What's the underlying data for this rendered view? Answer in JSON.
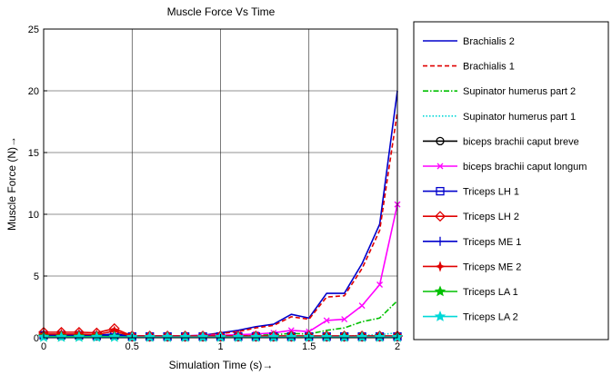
{
  "chart_data": {
    "type": "line",
    "title": "Muscle Force Vs Time",
    "xlabel": "Simulation Time (s)→",
    "ylabel": "Muscle Force (N)→",
    "xlim": [
      0,
      2
    ],
    "ylim": [
      0,
      25
    ],
    "xticks": [
      0,
      0.5,
      1,
      1.5,
      2
    ],
    "yticks": [
      0,
      5,
      10,
      15,
      20,
      25
    ],
    "xtick_labels": [
      "0",
      "0.5",
      "1",
      "1.5",
      "2"
    ],
    "ytick_labels": [
      "0",
      "5",
      "10",
      "15",
      "20",
      "25"
    ],
    "grid": true,
    "legend_position": "outside-right",
    "x": [
      0,
      0.1,
      0.2,
      0.3,
      0.4,
      0.5,
      0.6,
      0.7,
      0.8,
      0.9,
      1.0,
      1.1,
      1.2,
      1.3,
      1.4,
      1.5,
      1.6,
      1.7,
      1.8,
      1.9,
      2.0
    ],
    "series": [
      {
        "name": "Brachialis 2",
        "color": "#0000cc",
        "dash": "solid",
        "marker": "none",
        "values": [
          0.1,
          0.1,
          0.1,
          0.1,
          0.1,
          0.1,
          0.1,
          0.1,
          0.15,
          0.2,
          0.4,
          0.6,
          0.9,
          1.1,
          1.9,
          1.6,
          3.6,
          3.6,
          6.0,
          9.2,
          20.0
        ]
      },
      {
        "name": "Brachialis 1",
        "color": "#e00000",
        "dash": "dashed",
        "marker": "none",
        "values": [
          0.1,
          0.1,
          0.1,
          0.1,
          0.1,
          0.1,
          0.1,
          0.1,
          0.12,
          0.18,
          0.35,
          0.5,
          0.8,
          1.0,
          1.7,
          1.5,
          3.3,
          3.4,
          5.6,
          8.7,
          18.3
        ]
      },
      {
        "name": "Supinator humerus part 2",
        "color": "#00c000",
        "dash": "dashdot",
        "marker": "none",
        "values": [
          0.05,
          0.05,
          0.05,
          0.05,
          0.05,
          0.05,
          0.05,
          0.05,
          0.05,
          0.05,
          0.1,
          0.15,
          0.2,
          0.25,
          0.35,
          0.3,
          0.6,
          0.8,
          1.3,
          1.6,
          3.0
        ]
      },
      {
        "name": "Supinator humerus part 1",
        "color": "#00d8d8",
        "dash": "dotted",
        "marker": "none",
        "values": [
          0.02,
          0.02,
          0.02,
          0.02,
          0.02,
          0.02,
          0.02,
          0.02,
          0.02,
          0.02,
          0.03,
          0.04,
          0.05,
          0.06,
          0.08,
          0.07,
          0.1,
          0.12,
          0.2,
          0.25,
          0.4
        ]
      },
      {
        "name": "biceps brachii caput breve",
        "color": "#000000",
        "dash": "solid",
        "marker": "circle",
        "values": [
          0.2,
          0.15,
          0.15,
          0.1,
          0.35,
          0.05,
          0.05,
          0.05,
          0.05,
          0.05,
          0.05,
          0.05,
          0.05,
          0.05,
          0.05,
          0.05,
          0.05,
          0.05,
          0.05,
          0.05,
          0.05
        ]
      },
      {
        "name": "biceps brachii caput longum",
        "color": "#ff00ff",
        "dash": "solid",
        "marker": "x",
        "values": [
          0.15,
          0.15,
          0.15,
          0.15,
          0.15,
          0.15,
          0.15,
          0.15,
          0.15,
          0.2,
          0.2,
          0.25,
          0.3,
          0.4,
          0.6,
          0.5,
          1.4,
          1.5,
          2.6,
          4.3,
          10.8
        ]
      },
      {
        "name": "Triceps LH 1",
        "color": "#0000cc",
        "dash": "solid",
        "marker": "square",
        "values": [
          0.2,
          0.2,
          0.2,
          0.15,
          0.2,
          0.1,
          0.1,
          0.1,
          0.1,
          0.1,
          0.1,
          0.1,
          0.1,
          0.1,
          0.1,
          0.1,
          0.1,
          0.1,
          0.1,
          0.1,
          0.1
        ]
      },
      {
        "name": "Triceps LH 2",
        "color": "#e00000",
        "dash": "solid",
        "marker": "diamond",
        "values": [
          0.45,
          0.45,
          0.45,
          0.4,
          0.75,
          0.15,
          0.15,
          0.15,
          0.15,
          0.15,
          0.15,
          0.15,
          0.15,
          0.15,
          0.15,
          0.15,
          0.15,
          0.15,
          0.15,
          0.15,
          0.15
        ]
      },
      {
        "name": "Triceps ME 1",
        "color": "#0000cc",
        "dash": "solid",
        "marker": "plus",
        "values": [
          0.25,
          0.25,
          0.25,
          0.2,
          0.3,
          0.1,
          0.1,
          0.1,
          0.1,
          0.1,
          0.1,
          0.1,
          0.1,
          0.1,
          0.1,
          0.1,
          0.1,
          0.1,
          0.1,
          0.1,
          0.1
        ]
      },
      {
        "name": "Triceps ME 2",
        "color": "#e00000",
        "dash": "solid",
        "marker": "star4",
        "values": [
          0.3,
          0.3,
          0.3,
          0.25,
          0.55,
          0.1,
          0.1,
          0.1,
          0.1,
          0.1,
          0.1,
          0.1,
          0.1,
          0.1,
          0.1,
          0.1,
          0.1,
          0.1,
          0.1,
          0.1,
          0.1
        ]
      },
      {
        "name": "Triceps LA 1",
        "color": "#00c000",
        "dash": "solid",
        "marker": "star",
        "values": [
          0.1,
          0.1,
          0.1,
          0.1,
          0.1,
          0.05,
          0.05,
          0.05,
          0.05,
          0.05,
          0.05,
          0.05,
          0.05,
          0.05,
          0.05,
          0.05,
          0.05,
          0.05,
          0.05,
          0.05,
          0.05
        ]
      },
      {
        "name": "Triceps LA 2",
        "color": "#00d8d8",
        "dash": "solid",
        "marker": "star",
        "values": [
          0.05,
          0.05,
          0.05,
          0.05,
          0.05,
          0.05,
          0.05,
          0.05,
          0.05,
          0.05,
          0.05,
          0.05,
          0.05,
          0.05,
          0.05,
          0.05,
          0.05,
          0.05,
          0.05,
          0.05,
          0.05
        ]
      }
    ]
  }
}
